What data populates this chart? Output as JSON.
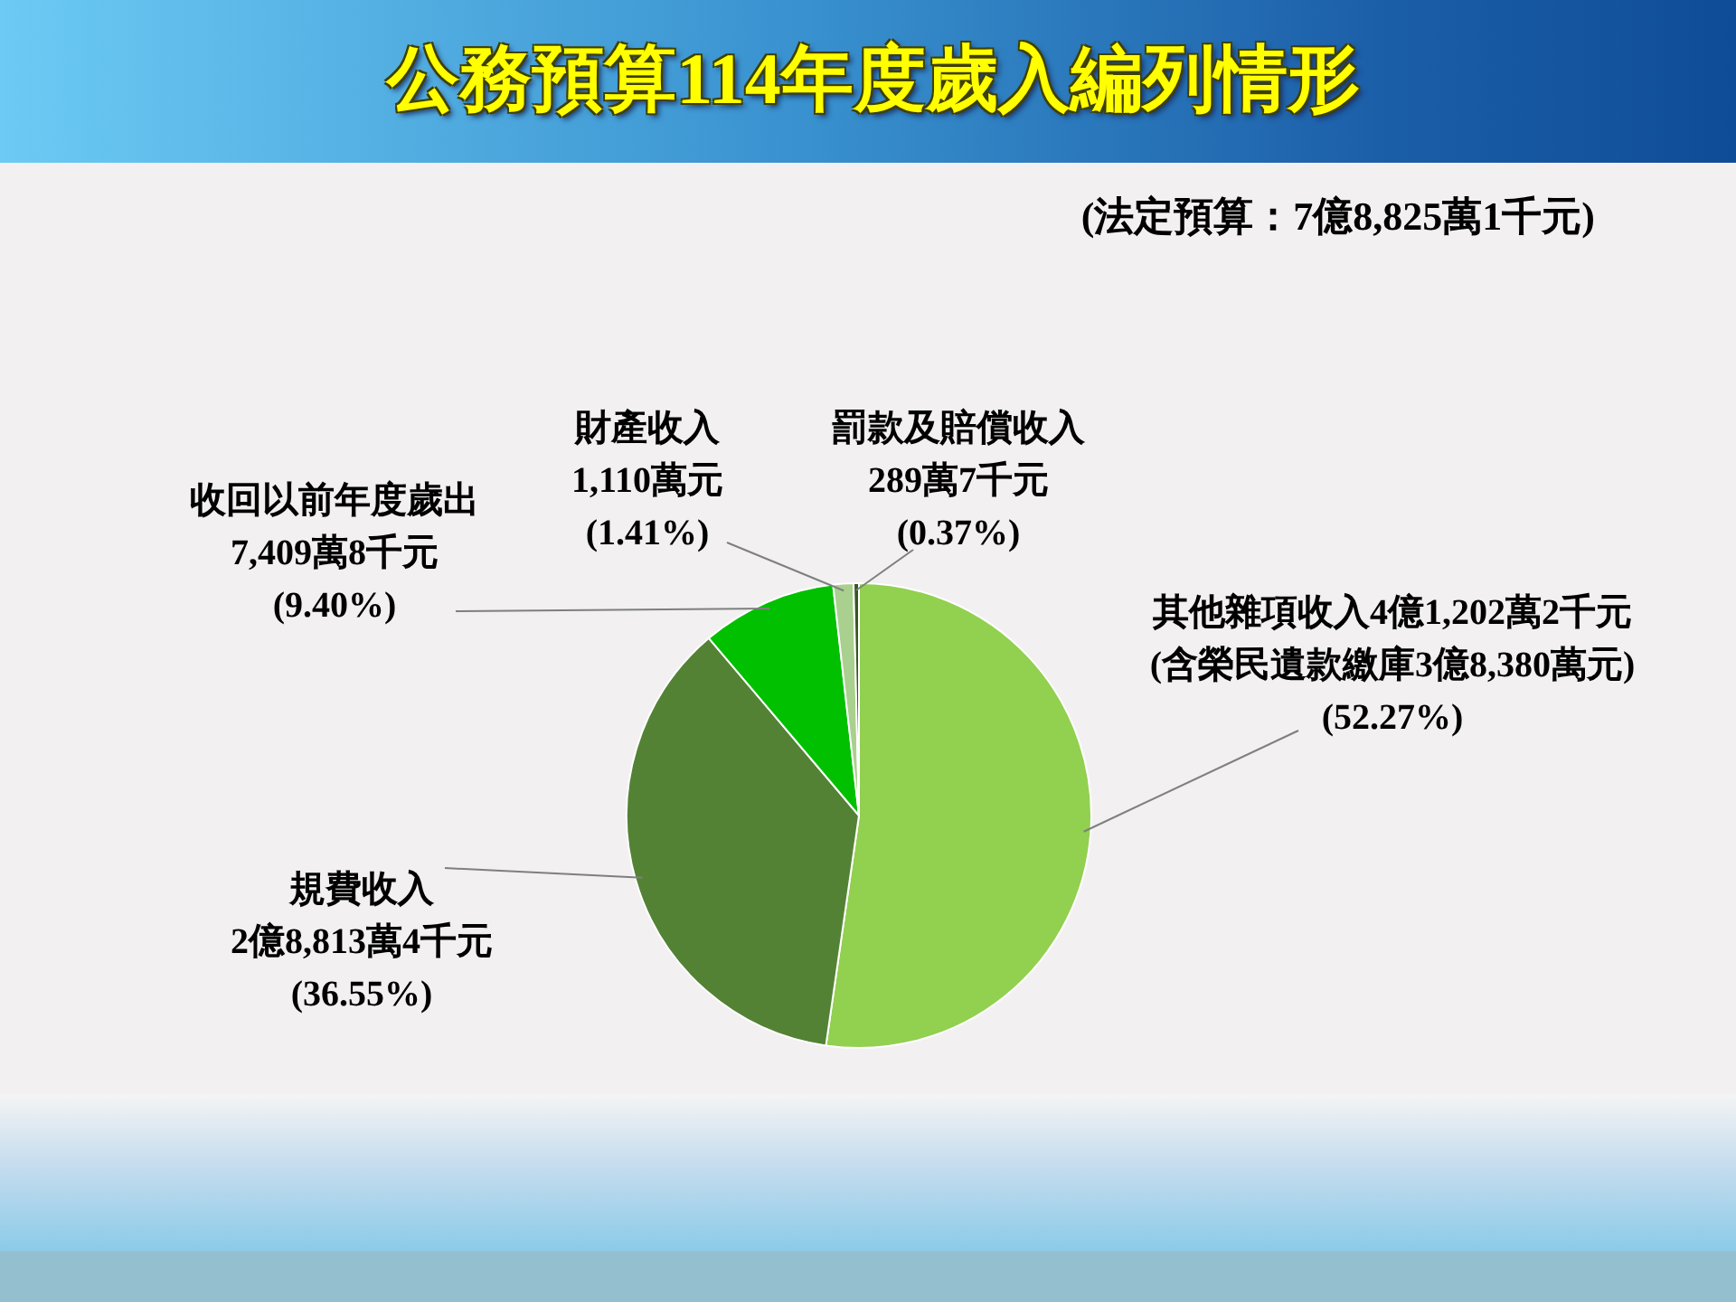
{
  "chart_data": {
    "type": "pie",
    "title": "公務預算114年度歲入編列情形",
    "subtitle": "(法定預算：7億8,825萬1千元)",
    "categories": [
      "其他雜項收入",
      "規費收入",
      "收回以前年度歲出",
      "財產收入",
      "罰款及賠償收入"
    ],
    "values": [
      52.27,
      36.55,
      9.4,
      1.41,
      0.37
    ],
    "colors": [
      "#92d050",
      "#548235",
      "#00c000",
      "#a9d08e",
      "#375623"
    ],
    "value_labels": [
      "4億1,202萬2千元\n(含榮民遺款繳庫3億8,380萬元)\n(52.27%)",
      "2億8,813萬4千元\n(36.55%)",
      "7,409萬8千元\n(9.40%)",
      "1,110萬元\n(1.41%)",
      "289萬7千元\n(0.37%)"
    ]
  }
}
